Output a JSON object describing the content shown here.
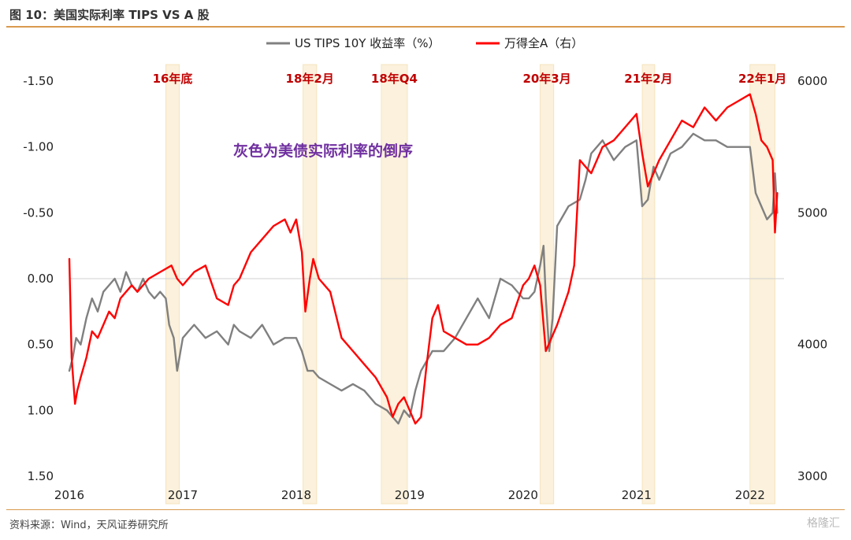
{
  "figure": {
    "title": "图 10：美国实际利率 TIPS VS A 股",
    "source": "资料来源：Wind，天风证券研究所",
    "watermark": "格隆汇"
  },
  "chart_data": {
    "type": "line",
    "title": "图 10：美国实际利率 TIPS VS A 股",
    "annotation": "灰色为美债实际利率的倒序",
    "x_axis": {
      "type": "time",
      "range": [
        2016.0,
        2022.3
      ],
      "tick_labels": [
        "2016",
        "2017",
        "2018",
        "2019",
        "2020",
        "2021",
        "2022"
      ]
    },
    "y_left": {
      "label": "",
      "inverted": true,
      "range": [
        -1.5,
        1.5
      ],
      "tick_labels": [
        "-1.50",
        "-1.00",
        "-0.50",
        "0.00",
        "0.50",
        "1.00",
        "1.50"
      ],
      "ticks": [
        -1.5,
        -1.0,
        -0.5,
        0.0,
        0.5,
        1.0,
        1.5
      ]
    },
    "y_right": {
      "label": "",
      "range": [
        3000,
        6000
      ],
      "tick_labels": [
        "3000",
        "4000",
        "5000",
        "6000"
      ],
      "ticks": [
        3000,
        4000,
        5000,
        6000
      ]
    },
    "zero_line": true,
    "grid": false,
    "legend": {
      "position": "top-center",
      "entries": [
        {
          "name": "US TIPS 10Y 收益率（%）",
          "color": "#808080",
          "axis": "left"
        },
        {
          "name": "万得全A（右）",
          "color": "#ff0000",
          "axis": "right"
        }
      ]
    },
    "highlight_periods": [
      {
        "label": "16年底",
        "start": 2016.85,
        "end": 2016.97
      },
      {
        "label": "18年2月",
        "start": 2018.06,
        "end": 2018.18
      },
      {
        "label": "18年Q4",
        "start": 2018.75,
        "end": 2018.98
      },
      {
        "label": "20年3月",
        "start": 2020.15,
        "end": 2020.27
      },
      {
        "label": "21年2月",
        "start": 2021.05,
        "end": 2021.16
      },
      {
        "label": "22年1月",
        "start": 2022.0,
        "end": 2022.22
      }
    ],
    "series": [
      {
        "name": "US TIPS 10Y 收益率（%）",
        "color": "#808080",
        "axis": "left",
        "x": [
          2016.0,
          2016.03,
          2016.06,
          2016.1,
          2016.15,
          2016.2,
          2016.25,
          2016.3,
          2016.35,
          2016.4,
          2016.45,
          2016.5,
          2016.55,
          2016.6,
          2016.65,
          2016.7,
          2016.75,
          2016.8,
          2016.85,
          2016.88,
          2016.92,
          2016.95,
          2017.0,
          2017.05,
          2017.1,
          2017.2,
          2017.3,
          2017.4,
          2017.45,
          2017.5,
          2017.6,
          2017.7,
          2017.8,
          2017.9,
          2018.0,
          2018.05,
          2018.1,
          2018.15,
          2018.2,
          2018.3,
          2018.4,
          2018.5,
          2018.6,
          2018.7,
          2018.8,
          2018.85,
          2018.9,
          2018.95,
          2019.0,
          2019.05,
          2019.1,
          2019.2,
          2019.3,
          2019.4,
          2019.5,
          2019.6,
          2019.7,
          2019.8,
          2019.9,
          2020.0,
          2020.05,
          2020.1,
          2020.15,
          2020.18,
          2020.2,
          2020.23,
          2020.26,
          2020.3,
          2020.4,
          2020.5,
          2020.55,
          2020.6,
          2020.7,
          2020.8,
          2020.9,
          2021.0,
          2021.05,
          2021.1,
          2021.15,
          2021.2,
          2021.3,
          2021.4,
          2021.5,
          2021.6,
          2021.7,
          2021.8,
          2021.9,
          2022.0,
          2022.05,
          2022.1,
          2022.15,
          2022.2,
          2022.22,
          2022.24
        ],
        "y": [
          0.7,
          0.6,
          0.45,
          0.5,
          0.3,
          0.15,
          0.25,
          0.1,
          0.05,
          0.0,
          0.1,
          -0.05,
          0.05,
          0.1,
          0.0,
          0.1,
          0.15,
          0.1,
          0.15,
          0.35,
          0.45,
          0.7,
          0.45,
          0.4,
          0.35,
          0.45,
          0.4,
          0.5,
          0.35,
          0.4,
          0.45,
          0.35,
          0.5,
          0.45,
          0.45,
          0.55,
          0.7,
          0.7,
          0.75,
          0.8,
          0.85,
          0.8,
          0.85,
          0.95,
          1.0,
          1.05,
          1.1,
          1.0,
          1.05,
          0.85,
          0.7,
          0.55,
          0.55,
          0.45,
          0.3,
          0.15,
          0.3,
          0.0,
          0.05,
          0.15,
          0.15,
          0.1,
          -0.1,
          -0.25,
          0.15,
          0.55,
          0.3,
          -0.4,
          -0.55,
          -0.6,
          -0.75,
          -0.95,
          -1.05,
          -0.9,
          -1.0,
          -1.05,
          -0.55,
          -0.6,
          -0.85,
          -0.75,
          -0.95,
          -1.0,
          -1.1,
          -1.05,
          -1.05,
          -1.0,
          -1.0,
          -1.0,
          -0.65,
          -0.55,
          -0.45,
          -0.5,
          -0.8,
          -0.5
        ]
      },
      {
        "name": "万得全A（右）",
        "color": "#ff0000",
        "axis": "right",
        "x": [
          2016.0,
          2016.02,
          2016.05,
          2016.07,
          2016.1,
          2016.15,
          2016.2,
          2016.25,
          2016.3,
          2016.35,
          2016.4,
          2016.45,
          2016.5,
          2016.55,
          2016.6,
          2016.7,
          2016.8,
          2016.9,
          2016.95,
          2017.0,
          2017.1,
          2017.2,
          2017.3,
          2017.4,
          2017.45,
          2017.5,
          2017.6,
          2017.7,
          2017.8,
          2017.9,
          2017.95,
          2018.0,
          2018.05,
          2018.08,
          2018.12,
          2018.15,
          2018.2,
          2018.3,
          2018.4,
          2018.5,
          2018.6,
          2018.7,
          2018.8,
          2018.85,
          2018.9,
          2018.95,
          2019.0,
          2019.05,
          2019.1,
          2019.15,
          2019.2,
          2019.25,
          2019.3,
          2019.4,
          2019.5,
          2019.6,
          2019.7,
          2019.8,
          2019.9,
          2020.0,
          2020.05,
          2020.1,
          2020.15,
          2020.2,
          2020.25,
          2020.3,
          2020.4,
          2020.45,
          2020.5,
          2020.55,
          2020.6,
          2020.7,
          2020.8,
          2020.9,
          2021.0,
          2021.05,
          2021.1,
          2021.15,
          2021.2,
          2021.3,
          2021.4,
          2021.5,
          2021.6,
          2021.7,
          2021.8,
          2021.9,
          2022.0,
          2022.05,
          2022.1,
          2022.15,
          2022.2,
          2022.22,
          2022.24
        ],
        "y": [
          4650,
          3900,
          3550,
          3650,
          3750,
          3900,
          4100,
          4050,
          4150,
          4250,
          4200,
          4350,
          4400,
          4450,
          4400,
          4500,
          4550,
          4600,
          4500,
          4450,
          4550,
          4600,
          4350,
          4300,
          4450,
          4500,
          4700,
          4800,
          4900,
          4950,
          4850,
          4950,
          4700,
          4250,
          4500,
          4650,
          4500,
          4400,
          4050,
          3950,
          3850,
          3750,
          3600,
          3450,
          3550,
          3600,
          3500,
          3400,
          3450,
          3850,
          4200,
          4300,
          4100,
          4050,
          4000,
          4000,
          4050,
          4150,
          4200,
          4450,
          4500,
          4600,
          4450,
          3950,
          4050,
          4150,
          4400,
          4600,
          5400,
          5350,
          5300,
          5500,
          5550,
          5650,
          5750,
          5450,
          5200,
          5300,
          5400,
          5550,
          5700,
          5650,
          5800,
          5700,
          5800,
          5850,
          5900,
          5750,
          5550,
          5500,
          5400,
          4850,
          5150
        ]
      }
    ]
  }
}
